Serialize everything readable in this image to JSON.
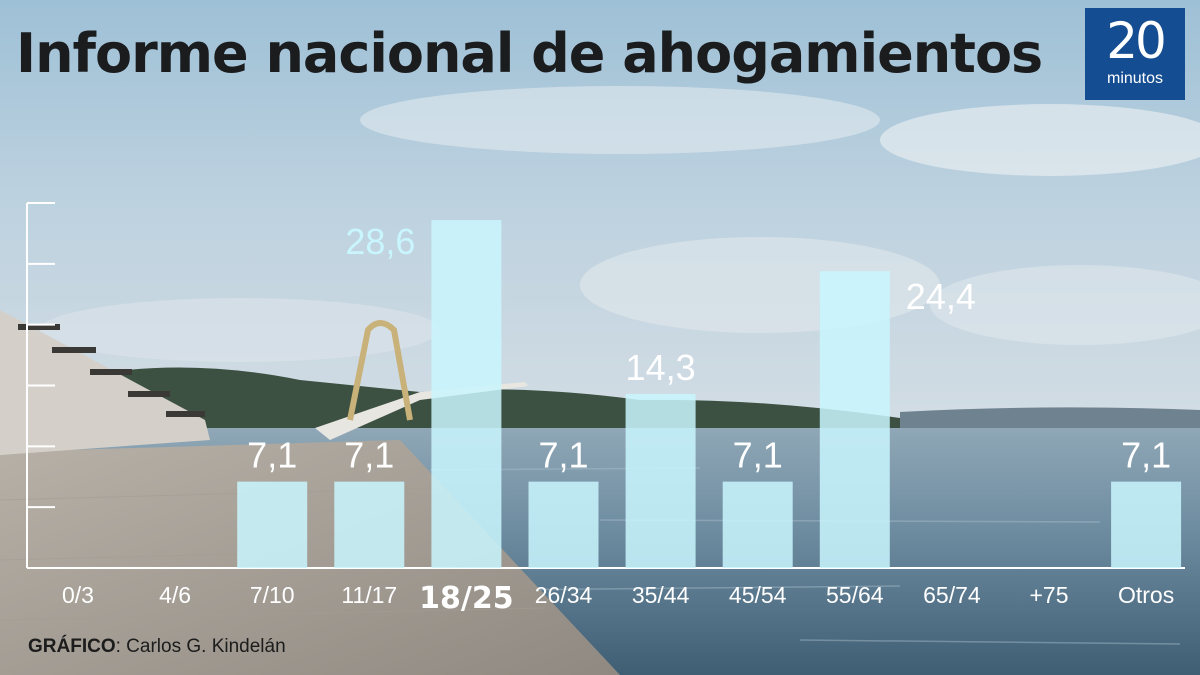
{
  "header": {
    "title": "Informe nacional de ahogamientos"
  },
  "brand": {
    "logo_number": "20",
    "logo_word": "minutos",
    "color": "#144d91"
  },
  "credit": {
    "label": "GRÁFICO",
    "separator": ":",
    "author": "Carlos G. Kindelán"
  },
  "colors": {
    "bar": "#c9f6fe",
    "highlight_label": "#c9f6fe",
    "value_label": "#ffffff",
    "tick_label": "#ffffff"
  },
  "chart_data": {
    "type": "bar",
    "title": "Informe nacional de ahogamientos",
    "xlabel": "",
    "ylabel": "",
    "ylim": [
      0,
      30
    ],
    "grid": false,
    "categories": [
      "0/3",
      "4/6",
      "7/10",
      "11/17",
      "18/25",
      "26/34",
      "35/44",
      "45/54",
      "55/64",
      "65/74",
      "+75",
      "Otros"
    ],
    "values": [
      null,
      null,
      7.1,
      7.1,
      28.6,
      7.1,
      14.3,
      7.1,
      24.4,
      null,
      null,
      7.1
    ],
    "value_labels": [
      "",
      "",
      "7,1",
      "7,1",
      "28,6",
      "7,1",
      "14,3",
      "7,1",
      "24,4",
      "",
      "",
      "7,1"
    ],
    "highlight_category": "18/25"
  }
}
